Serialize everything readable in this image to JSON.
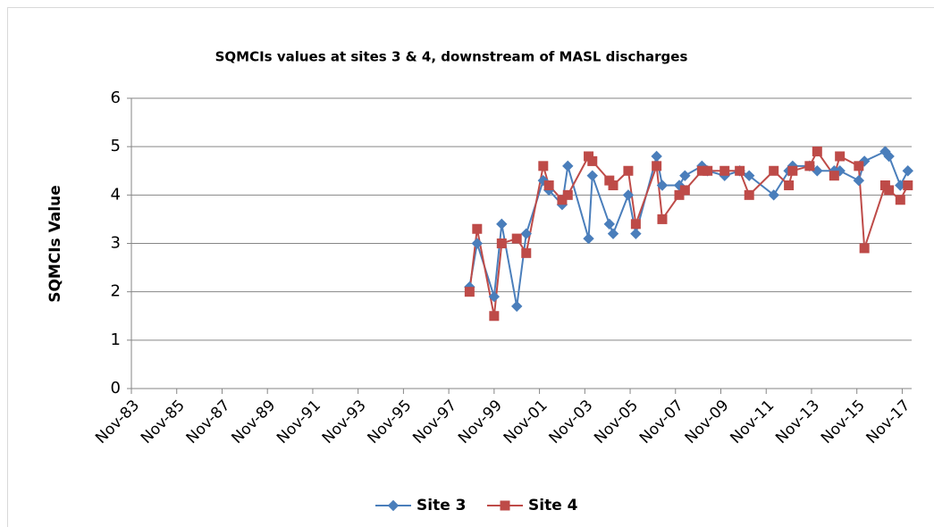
{
  "chart_data": {
    "type": "line",
    "title": "SQMCIs values at sites 3 & 4, downstream of MASL discharges",
    "y_label": "SQMCIs Value",
    "x": [
      "1998-10",
      "1999-02",
      "1999-11",
      "2000-03",
      "2000-11",
      "2001-04",
      "2002-01",
      "2002-04",
      "2002-11",
      "2003-02",
      "2004-01",
      "2004-03",
      "2004-12",
      "2005-02",
      "2005-10",
      "2006-02",
      "2007-01",
      "2007-04",
      "2008-01",
      "2008-04",
      "2009-01",
      "2009-04",
      "2010-01",
      "2010-09",
      "2011-02",
      "2012-03",
      "2012-11",
      "2013-01",
      "2013-10",
      "2014-02",
      "2014-11",
      "2015-02",
      "2015-12",
      "2016-03",
      "2017-02",
      "2017-04",
      "2017-10",
      "2018-02"
    ],
    "series": [
      {
        "name": "Site 3",
        "color": "#4a7ebb",
        "marker": "diamond",
        "values": [
          2.1,
          3.0,
          1.9,
          3.4,
          1.7,
          3.2,
          4.3,
          4.1,
          3.8,
          4.6,
          3.1,
          4.4,
          3.4,
          3.2,
          4.0,
          3.2,
          4.8,
          4.2,
          4.2,
          4.4,
          4.6,
          4.5,
          4.4,
          4.5,
          4.4,
          4.0,
          4.5,
          4.6,
          4.6,
          4.5,
          4.5,
          4.5,
          4.3,
          4.7,
          4.9,
          4.8,
          4.2,
          4.5
        ]
      },
      {
        "name": "Site 4",
        "color": "#be4b48",
        "marker": "square",
        "values": [
          2.0,
          3.3,
          1.5,
          3.0,
          3.1,
          2.8,
          4.6,
          4.2,
          3.9,
          4.0,
          4.8,
          4.7,
          4.3,
          4.2,
          4.5,
          3.4,
          4.6,
          3.5,
          4.0,
          4.1,
          4.5,
          4.5,
          4.5,
          4.5,
          4.0,
          4.5,
          4.2,
          4.5,
          4.6,
          4.9,
          4.4,
          4.8,
          4.6,
          2.9,
          4.2,
          4.1,
          3.9,
          4.2
        ]
      }
    ],
    "xlim": [
      "1983-11",
      "2018-04"
    ],
    "xticks": [
      {
        "value": "1983-11",
        "label": "Nov-83"
      },
      {
        "value": "1985-11",
        "label": "Nov-85"
      },
      {
        "value": "1987-11",
        "label": "Nov-87"
      },
      {
        "value": "1989-11",
        "label": "Nov-89"
      },
      {
        "value": "1991-11",
        "label": "Nov-91"
      },
      {
        "value": "1993-11",
        "label": "Nov-93"
      },
      {
        "value": "1995-11",
        "label": "Nov-95"
      },
      {
        "value": "1997-11",
        "label": "Nov-97"
      },
      {
        "value": "1999-11",
        "label": "Nov-99"
      },
      {
        "value": "2001-11",
        "label": "Nov-01"
      },
      {
        "value": "2003-11",
        "label": "Nov-03"
      },
      {
        "value": "2005-11",
        "label": "Nov-05"
      },
      {
        "value": "2007-11",
        "label": "Nov-07"
      },
      {
        "value": "2009-11",
        "label": "Nov-09"
      },
      {
        "value": "2011-11",
        "label": "Nov-11"
      },
      {
        "value": "2013-11",
        "label": "Nov-13"
      },
      {
        "value": "2015-11",
        "label": "Nov-15"
      },
      {
        "value": "2017-11",
        "label": "Nov-17"
      }
    ],
    "ylim": [
      0,
      6
    ],
    "yticks": [
      0,
      1,
      2,
      3,
      4,
      5,
      6
    ],
    "grid": true,
    "legend": "bottom"
  }
}
